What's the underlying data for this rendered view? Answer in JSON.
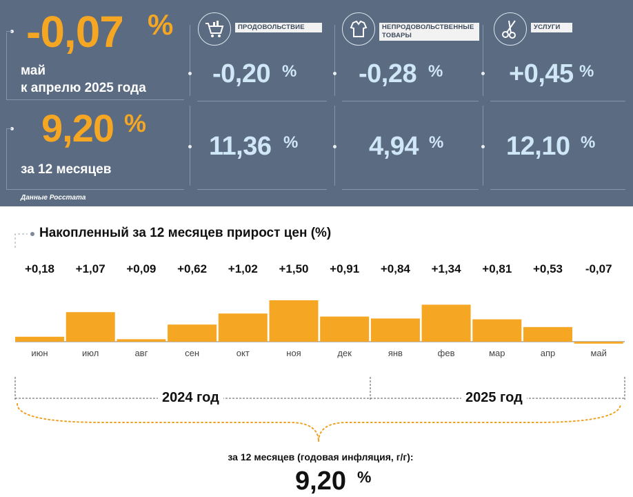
{
  "summary": {
    "monthly_value": "-0,07",
    "monthly_pct": "%",
    "monthly_label_1": "май",
    "monthly_label_2": "к апрелю 2025 года",
    "annual_value": "9,20",
    "annual_pct": "%",
    "annual_label": "за 12 месяцев"
  },
  "categories": [
    {
      "label": "ПРОДОВОЛЬСТВИЕ",
      "icon": "shopping-cart-icon",
      "monthly": "-0,20",
      "annual": "11,36"
    },
    {
      "label": "НЕПРОДОВОЛЬСТВЕННЫЕ ТОВАРЫ",
      "icon": "clothing-icon",
      "monthly": "-0,28",
      "annual": "4,94"
    },
    {
      "label": "УСЛУГИ",
      "icon": "scissors-icon",
      "monthly": "+0,45",
      "annual": "12,10"
    }
  ],
  "pct_sign": "%",
  "source": "Данные Росстата",
  "chart_data": {
    "type": "bar",
    "title": "Накопленный за 12 месяцев прирост цен (%)",
    "categories": [
      "июн",
      "июл",
      "авг",
      "сен",
      "окт",
      "ноя",
      "дек",
      "янв",
      "фев",
      "мар",
      "апр",
      "май"
    ],
    "values": [
      0.18,
      1.07,
      0.09,
      0.62,
      1.02,
      1.5,
      0.91,
      0.84,
      1.34,
      0.81,
      0.53,
      -0.07
    ],
    "value_labels": [
      "+0,18",
      "+1,07",
      "+0,09",
      "+0,62",
      "+1,02",
      "+1,50",
      "+0,91",
      "+0,84",
      "+1,34",
      "+0,81",
      "+0,53",
      "-0,07"
    ],
    "bar_color": "#f5a623",
    "years": [
      {
        "label": "2024 год",
        "months": 7
      },
      {
        "label": "2025 год",
        "months": 5
      }
    ]
  },
  "footer": {
    "label": "за 12 месяцев (годовая инфляция, г/г):",
    "value": "9,20",
    "pct": "%"
  }
}
